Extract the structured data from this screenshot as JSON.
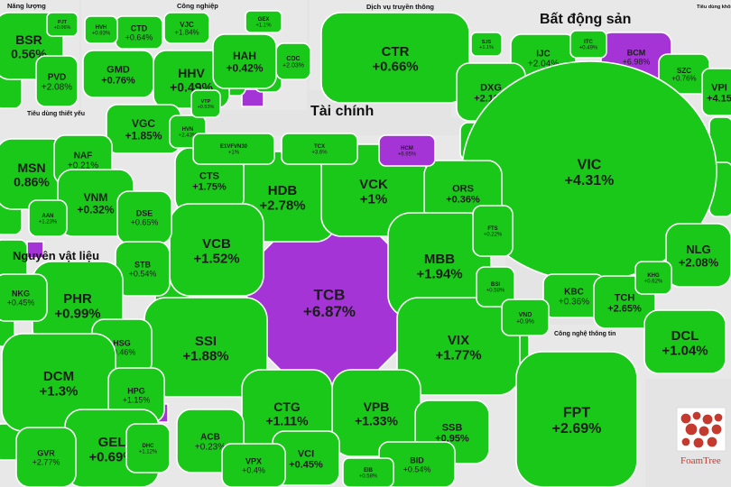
{
  "chart_data": {
    "type": "treemap",
    "groups": [
      {
        "name": "Năng lượng",
        "items": [
          {
            "ticker": "BSR",
            "change": "0.56%"
          },
          {
            "ticker": "PVD",
            "change": "+2.08%"
          },
          {
            "ticker": "PJT",
            "change": "+0.06%"
          }
        ]
      },
      {
        "name": "Công nghiệp",
        "items": [
          {
            "ticker": "CTD",
            "change": "+0.64%"
          },
          {
            "ticker": "VJC",
            "change": "+1.84%"
          },
          {
            "ticker": "HVH",
            "change": "+0.93%"
          },
          {
            "ticker": "GEX",
            "change": "+1.1%"
          },
          {
            "ticker": "GMD",
            "change": "+0.76%"
          },
          {
            "ticker": "HHV",
            "change": "+0.49%"
          },
          {
            "ticker": "HAH",
            "change": "+0.42%"
          },
          {
            "ticker": "CDC",
            "change": "+2.03%"
          },
          {
            "ticker": "VGC",
            "change": "+1.85%"
          },
          {
            "ticker": "HVN",
            "change": "+2.43%"
          },
          {
            "ticker": "VTP",
            "change": "+0.53%"
          }
        ]
      },
      {
        "name": "Dịch vụ truyền thông",
        "items": [
          {
            "ticker": "CTR",
            "change": "+0.66%"
          }
        ]
      },
      {
        "name": "Bất động sản",
        "items": [
          {
            "ticker": "BCM",
            "change": "+6.98%"
          },
          {
            "ticker": "IJC",
            "change": "+2.04%"
          },
          {
            "ticker": "ITC",
            "change": "+0.49%"
          },
          {
            "ticker": "SJS",
            "change": "+1.1%"
          },
          {
            "ticker": "SZC",
            "change": "+0.76%"
          },
          {
            "ticker": "DXG",
            "change": "+2.12%"
          },
          {
            "ticker": "KDH",
            "change": "+1.1%"
          },
          {
            "ticker": "VIC",
            "change": "+4.31%"
          },
          {
            "ticker": "VPI",
            "change": "+4.15"
          },
          {
            "ticker": "NLG",
            "change": "+2.08%"
          },
          {
            "ticker": "KBC",
            "change": "+0.36%"
          },
          {
            "ticker": "TCH",
            "change": "+2.65%"
          },
          {
            "ticker": "KHG",
            "change": "+0.62%"
          },
          {
            "ticker": "DCL",
            "change": "+1.04%"
          }
        ]
      },
      {
        "name": "Tiêu dùng không",
        "items": []
      },
      {
        "name": "Tiêu dùng thiết yếu",
        "items": [
          {
            "ticker": "MSN",
            "change": "0.86%"
          },
          {
            "ticker": "NAF",
            "change": "+0.21%"
          },
          {
            "ticker": "VNM",
            "change": "+0.32%"
          },
          {
            "ticker": "AAN",
            "change": "+1.23%"
          }
        ]
      },
      {
        "name": "Tài chính",
        "items": [
          {
            "ticker": "TCB",
            "change": "+6.87%"
          },
          {
            "ticker": "HDB",
            "change": "+2.78%"
          },
          {
            "ticker": "VCK",
            "change": "+1%"
          },
          {
            "ticker": "CTS",
            "change": "+1.75%"
          },
          {
            "ticker": "ORS",
            "change": "+0.36%"
          },
          {
            "ticker": "VCB",
            "change": "+1.52%"
          },
          {
            "ticker": "MBB",
            "change": "+1.94%"
          },
          {
            "ticker": "SSI",
            "change": "+1.88%"
          },
          {
            "ticker": "VIX",
            "change": "+1.77%"
          },
          {
            "ticker": "CTG",
            "change": "+1.11%"
          },
          {
            "ticker": "VPB",
            "change": "+1.33%"
          },
          {
            "ticker": "DSE",
            "change": "+0.65%"
          },
          {
            "ticker": "STB",
            "change": "+0.54%"
          },
          {
            "ticker": "ACB",
            "change": "+0.23%"
          },
          {
            "ticker": "VCI",
            "change": "+0.45%"
          },
          {
            "ticker": "SSB",
            "change": "+0.95%"
          },
          {
            "ticker": "VPX",
            "change": "+0.4%"
          },
          {
            "ticker": "BID",
            "change": "+0.54%"
          },
          {
            "ticker": "E1VFVN30",
            "change": "+1%"
          },
          {
            "ticker": "TCX",
            "change": "+3.6%"
          },
          {
            "ticker": "HCM",
            "change": "+6.95%"
          },
          {
            "ticker": "FTS",
            "change": "+0.22%"
          },
          {
            "ticker": "BSI",
            "change": "+0.58%"
          },
          {
            "ticker": "VND",
            "change": "+0.9%"
          },
          {
            "ticker": "EIB",
            "change": "+0.58%"
          }
        ]
      },
      {
        "name": "Nguyên vật liệu",
        "items": [
          {
            "ticker": "PHR",
            "change": "+0.99%"
          },
          {
            "ticker": "NKG",
            "change": "+0.45%"
          },
          {
            "ticker": "HSG",
            "change": "+0.46%"
          },
          {
            "ticker": "DCM",
            "change": "+1.3%"
          },
          {
            "ticker": "HPG",
            "change": "+1.15%"
          },
          {
            "ticker": "GEL",
            "change": "+0.69%"
          },
          {
            "ticker": "GVR",
            "change": "+2.77%"
          },
          {
            "ticker": "DHC",
            "change": "+1.12%"
          }
        ]
      },
      {
        "name": "Công nghệ thông tin",
        "items": [
          {
            "ticker": "FPT",
            "change": "+2.69%"
          }
        ]
      }
    ],
    "colors": {
      "up": "#1ac81a",
      "ceiling": "#a534d6",
      "frame": "#ffffff",
      "background": "#e4e4e4"
    }
  },
  "logo": {
    "text": "FoamTree"
  }
}
